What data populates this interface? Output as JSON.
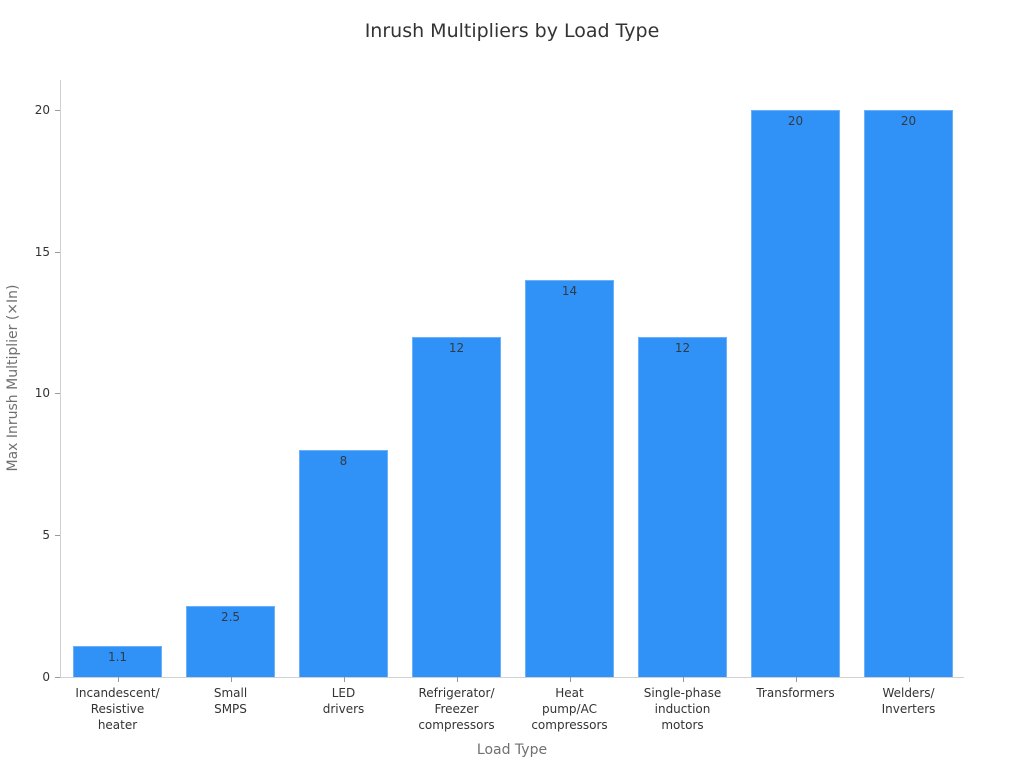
{
  "chart_data": {
    "type": "bar",
    "title": "Inrush Multipliers by Load Type",
    "xlabel": "Load Type",
    "ylabel": "Max Inrush Multiplier (×In)",
    "categories": [
      "Incandescent/\nResistive\nheater",
      "Small\nSMPS",
      "LED\ndrivers",
      "Refrigerator/\nFreezer\ncompressors",
      "Heat\npump/AC\ncompressors",
      "Single-phase\ninduction\nmotors",
      "Transformers",
      "Welders/\nInverters"
    ],
    "values": [
      1.1,
      2.5,
      8,
      12,
      14,
      12,
      20,
      20
    ],
    "value_labels": [
      "1.1",
      "2.5",
      "8",
      "12",
      "14",
      "12",
      "20",
      "20"
    ],
    "ylim": [
      0,
      21
    ],
    "yticks": [
      0,
      5,
      10,
      15,
      20
    ],
    "grid": false,
    "legend": null,
    "bar_color": "#3092f7"
  },
  "yticks": [
    "0",
    "5",
    "10",
    "15",
    "20"
  ]
}
